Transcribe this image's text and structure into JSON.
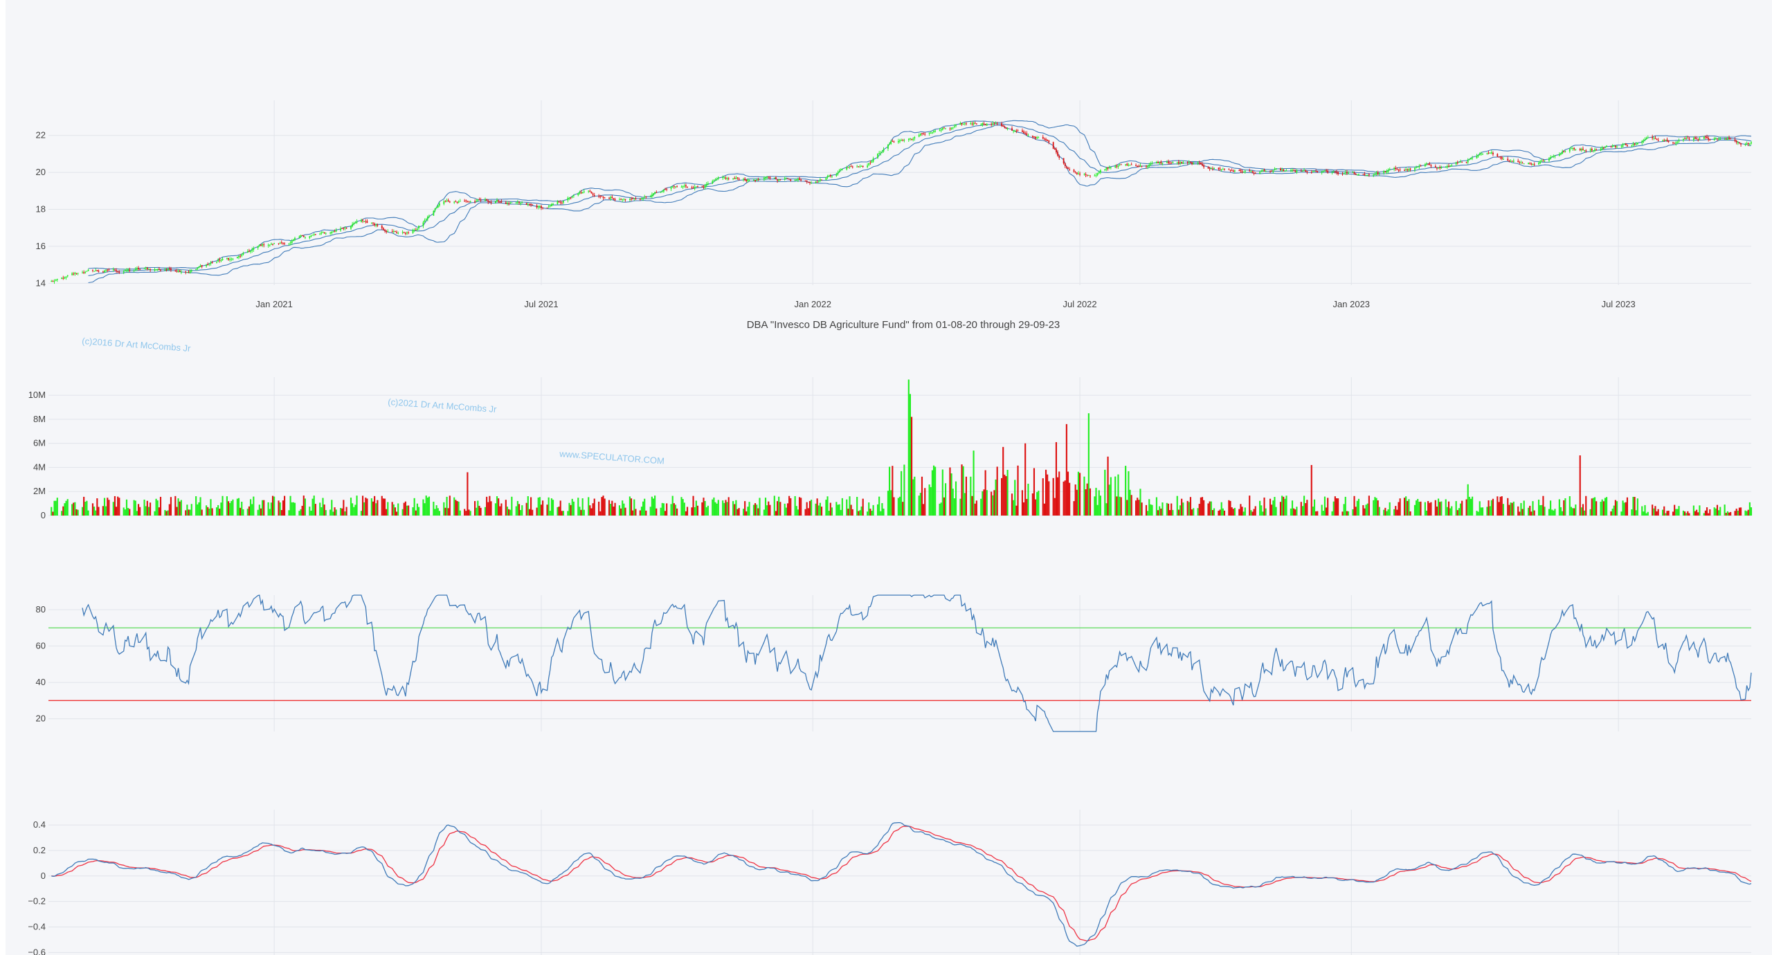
{
  "chart_data": [
    {
      "type": "candlestick",
      "title": "DBA \"Invesco DB Agriculture Fund\" from 01-08-20 through 29-09-23",
      "x_range": [
        "2020-08-01",
        "2023-09-29"
      ],
      "x_ticks": [
        "Jan 2021",
        "Jul 2021",
        "Jan 2022",
        "Jul 2022",
        "Jan 2023",
        "Jul 2023"
      ],
      "y_ticks": [
        "14",
        "16",
        "18",
        "20",
        "22"
      ],
      "ylim": [
        13.9,
        23.9
      ],
      "series": [
        {
          "name": "close",
          "anchors": [
            [
              "2020-08-03",
              14.1
            ],
            [
              "2020-09-01",
              14.6
            ],
            [
              "2020-10-01",
              14.7
            ],
            [
              "2020-11-01",
              14.8
            ],
            [
              "2020-12-01",
              15.3
            ],
            [
              "2021-01-01",
              16.1
            ],
            [
              "2021-02-01",
              16.6
            ],
            [
              "2021-03-01",
              17.3
            ],
            [
              "2021-04-01",
              16.8
            ],
            [
              "2021-05-01",
              18.5
            ],
            [
              "2021-06-01",
              18.4
            ],
            [
              "2021-07-01",
              18.0
            ],
            [
              "2021-08-01",
              18.8
            ],
            [
              "2021-09-01",
              18.6
            ],
            [
              "2021-10-01",
              19.1
            ],
            [
              "2021-11-01",
              19.5
            ],
            [
              "2021-12-01",
              19.6
            ],
            [
              "2022-01-01",
              19.7
            ],
            [
              "2022-02-01",
              20.5
            ],
            [
              "2022-03-01",
              21.8
            ],
            [
              "2022-04-01",
              22.3
            ],
            [
              "2022-05-01",
              22.7
            ],
            [
              "2022-06-01",
              21.9
            ],
            [
              "2022-07-01",
              20.0
            ],
            [
              "2022-08-01",
              20.4
            ],
            [
              "2022-09-01",
              20.5
            ],
            [
              "2022-10-01",
              20.2
            ],
            [
              "2022-11-01",
              20.0
            ],
            [
              "2022-12-01",
              19.9
            ],
            [
              "2023-01-01",
              19.8
            ],
            [
              "2023-02-01",
              20.1
            ],
            [
              "2023-03-01",
              20.3
            ],
            [
              "2023-04-01",
              20.8
            ],
            [
              "2023-05-01",
              20.6
            ],
            [
              "2023-06-01",
              21.3
            ],
            [
              "2023-07-01",
              21.5
            ],
            [
              "2023-08-01",
              21.9
            ],
            [
              "2023-09-01",
              22.0
            ],
            [
              "2023-09-29",
              21.6
            ]
          ]
        },
        {
          "name": "bollinger-upper",
          "color": "#3f7ab8"
        },
        {
          "name": "bollinger-lower",
          "color": "#3f7ab8"
        }
      ],
      "up_color": "#22ee22",
      "down_color": "#dd1111"
    },
    {
      "type": "bar",
      "y_ticks": [
        "0",
        "2M",
        "4M",
        "6M",
        "8M",
        "10M"
      ],
      "ylim": [
        0,
        11500000
      ],
      "baseline_volume": 900000,
      "spikes": [
        [
          "2022-03-07",
          11300000
        ],
        [
          "2022-03-08",
          10100000
        ],
        [
          "2022-03-09",
          8200000
        ],
        [
          "2022-04-20",
          5400000
        ],
        [
          "2022-05-10",
          5700000
        ],
        [
          "2022-05-25",
          6000000
        ],
        [
          "2022-06-15",
          6100000
        ],
        [
          "2022-06-22",
          7600000
        ],
        [
          "2022-07-07",
          8500000
        ],
        [
          "2022-07-20",
          4900000
        ],
        [
          "2021-05-12",
          3600000
        ],
        [
          "2022-12-05",
          4200000
        ],
        [
          "2023-03-21",
          2600000
        ],
        [
          "2023-06-05",
          5000000
        ],
        [
          "2023-09-28",
          1100000
        ]
      ]
    },
    {
      "type": "line",
      "y_ticks": [
        "20",
        "40",
        "60",
        "80"
      ],
      "ylim": [
        13,
        88
      ],
      "overbought": 70,
      "oversold": 30,
      "overbought_color": "#66dd66",
      "oversold_color": "#ee3333",
      "series": [
        {
          "color": "#3f7ab8"
        }
      ]
    },
    {
      "type": "line",
      "y_ticks": [
        "−0.6",
        "−0.4",
        "−0.2",
        "0",
        "0.2",
        "0.4"
      ],
      "ylim": [
        -0.62,
        0.52
      ],
      "series": [
        {
          "color": "#3f7ab8"
        },
        {
          "color": "#ee3344"
        }
      ]
    }
  ],
  "watermarks": [
    "(c)2016 Dr Art McCombs Jr",
    "(c)2021 Dr Art McCombs Jr",
    "www.SPECULATOR.COM"
  ]
}
